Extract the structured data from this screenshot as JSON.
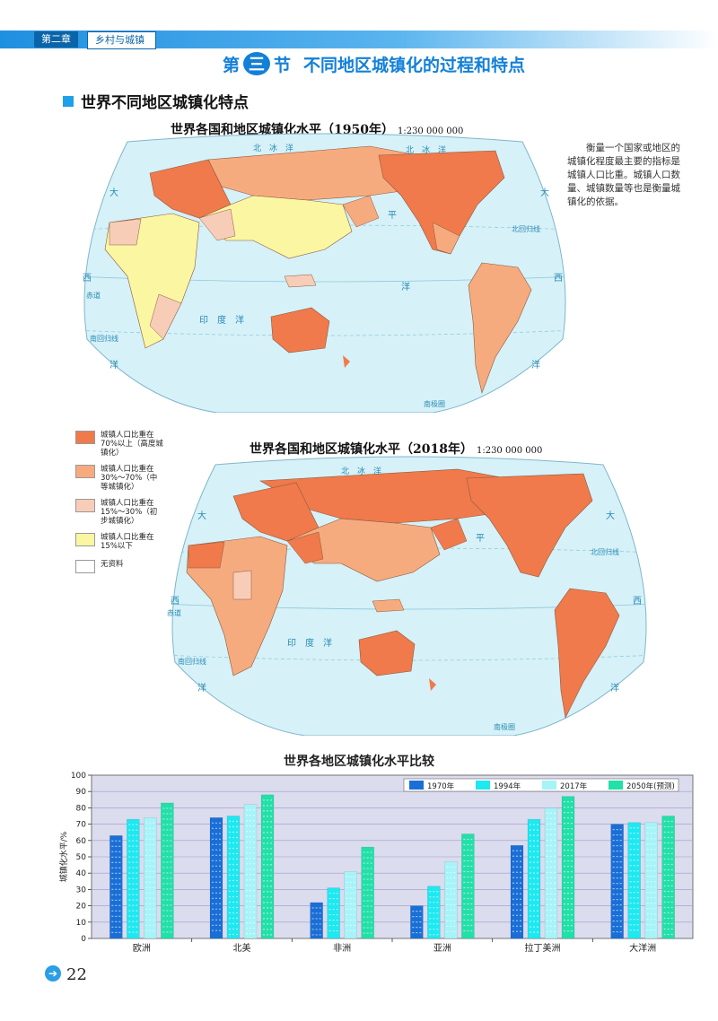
{
  "header": {
    "chapter": "第二章",
    "chapter_title": "乡村与城镇"
  },
  "section": {
    "prefix": "第",
    "number": "三",
    "suffix": "节",
    "title": "不同地区城镇化的过程和特点"
  },
  "subheading": "世界不同地区城镇化特点",
  "maps": {
    "map1": {
      "title": "世界各国和地区城镇化水平（1950年）",
      "scale": "1:230 000 000"
    },
    "map2": {
      "title": "世界各国和地区城镇化水平（2018年）",
      "scale": "1:230 000 000"
    },
    "labels": {
      "arctic": "北　冰　洋",
      "pacific_tai": "太",
      "pacific_ping": "平",
      "pacific_yang": "洋",
      "atlantic_da": "大",
      "atlantic_xi": "西",
      "atlantic_yang": "洋",
      "indian": "印　度　洋",
      "tropic_n": "北回归线",
      "tropic_s": "南回归线",
      "equator": "赤道",
      "antarctic": "南极圈"
    },
    "colors": {
      "ocean": "#d6f1f8",
      "high": "#f07a4b",
      "mid": "#f6ab7f",
      "low": "#f8cdb7",
      "verylow": "#fbf6a2",
      "nodata": "#ffffff"
    }
  },
  "side_note": "衡量一个国家或地区的城镇化程度最主要的指标是城镇人口比重。城镇人口数量、城镇数量等也是衡量城镇化的依据。",
  "legend": [
    {
      "label": "城镇人口比重在70%以上（高度城镇化）",
      "color": "#f07a4b"
    },
    {
      "label": "城镇人口比重在30%～70%（中等城镇化）",
      "color": "#f6ab7f"
    },
    {
      "label": "城镇人口比重在15%～30%（初步城镇化）",
      "color": "#f8cdb7"
    },
    {
      "label": "城镇人口比重在15%以下",
      "color": "#fbf6a2"
    },
    {
      "label": "无资料",
      "color": "#ffffff"
    }
  ],
  "chart_data": {
    "type": "bar",
    "title": "世界各地区城镇化水平比较",
    "ylabel": "城镇化水平/%",
    "xlabel": "",
    "ylim": [
      0,
      100
    ],
    "yticks": [
      "0",
      "10",
      "20",
      "30",
      "40",
      "50",
      "60",
      "70",
      "80",
      "90",
      "100"
    ],
    "categories": [
      "欧洲",
      "北美",
      "非洲",
      "亚洲",
      "拉丁美洲",
      "大洋洲"
    ],
    "series": [
      {
        "name": "1970年",
        "color": "#1a6fd6",
        "values": [
          63,
          74,
          22,
          20,
          57,
          70
        ]
      },
      {
        "name": "1994年",
        "color": "#1ee8f0",
        "values": [
          73,
          75,
          31,
          32,
          73,
          71
        ]
      },
      {
        "name": "2017年",
        "color": "#a6f3f8",
        "values": [
          74,
          82,
          41,
          47,
          80,
          71
        ]
      },
      {
        "name": "2050年(预测)",
        "color": "#22e0a8",
        "values": [
          83,
          88,
          56,
          64,
          87,
          75
        ]
      }
    ],
    "plot_bg": "#dcdcef",
    "grid": true,
    "legend_position": "top-right"
  },
  "page_number": "22"
}
